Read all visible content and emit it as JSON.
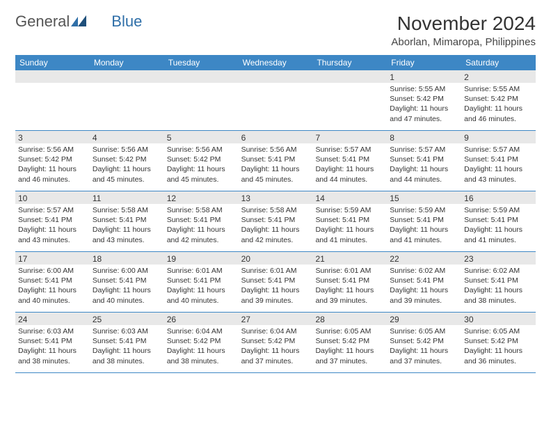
{
  "logo": {
    "text_a": "General",
    "text_b": "Blue"
  },
  "title": "November 2024",
  "location": "Aborlan, Mimaropa, Philippines",
  "colors": {
    "header_bg": "#3d87c5",
    "header_fg": "#ffffff",
    "daynum_bg": "#e8e8e8",
    "week_border": "#3d87c5",
    "text": "#333333",
    "logo_gray": "#555555",
    "logo_blue": "#2f6fa8",
    "page_bg": "#ffffff"
  },
  "typography": {
    "title_fontsize": 28,
    "location_fontsize": 15,
    "dow_fontsize": 12,
    "daynum_fontsize": 12,
    "body_fontsize": 10.5
  },
  "days_of_week": [
    "Sunday",
    "Monday",
    "Tuesday",
    "Wednesday",
    "Thursday",
    "Friday",
    "Saturday"
  ],
  "weeks": [
    [
      null,
      null,
      null,
      null,
      null,
      {
        "n": "1",
        "sunrise": "5:55 AM",
        "sunset": "5:42 PM",
        "daylight": "11 hours and 47 minutes."
      },
      {
        "n": "2",
        "sunrise": "5:55 AM",
        "sunset": "5:42 PM",
        "daylight": "11 hours and 46 minutes."
      }
    ],
    [
      {
        "n": "3",
        "sunrise": "5:56 AM",
        "sunset": "5:42 PM",
        "daylight": "11 hours and 46 minutes."
      },
      {
        "n": "4",
        "sunrise": "5:56 AM",
        "sunset": "5:42 PM",
        "daylight": "11 hours and 45 minutes."
      },
      {
        "n": "5",
        "sunrise": "5:56 AM",
        "sunset": "5:42 PM",
        "daylight": "11 hours and 45 minutes."
      },
      {
        "n": "6",
        "sunrise": "5:56 AM",
        "sunset": "5:41 PM",
        "daylight": "11 hours and 45 minutes."
      },
      {
        "n": "7",
        "sunrise": "5:57 AM",
        "sunset": "5:41 PM",
        "daylight": "11 hours and 44 minutes."
      },
      {
        "n": "8",
        "sunrise": "5:57 AM",
        "sunset": "5:41 PM",
        "daylight": "11 hours and 44 minutes."
      },
      {
        "n": "9",
        "sunrise": "5:57 AM",
        "sunset": "5:41 PM",
        "daylight": "11 hours and 43 minutes."
      }
    ],
    [
      {
        "n": "10",
        "sunrise": "5:57 AM",
        "sunset": "5:41 PM",
        "daylight": "11 hours and 43 minutes."
      },
      {
        "n": "11",
        "sunrise": "5:58 AM",
        "sunset": "5:41 PM",
        "daylight": "11 hours and 43 minutes."
      },
      {
        "n": "12",
        "sunrise": "5:58 AM",
        "sunset": "5:41 PM",
        "daylight": "11 hours and 42 minutes."
      },
      {
        "n": "13",
        "sunrise": "5:58 AM",
        "sunset": "5:41 PM",
        "daylight": "11 hours and 42 minutes."
      },
      {
        "n": "14",
        "sunrise": "5:59 AM",
        "sunset": "5:41 PM",
        "daylight": "11 hours and 41 minutes."
      },
      {
        "n": "15",
        "sunrise": "5:59 AM",
        "sunset": "5:41 PM",
        "daylight": "11 hours and 41 minutes."
      },
      {
        "n": "16",
        "sunrise": "5:59 AM",
        "sunset": "5:41 PM",
        "daylight": "11 hours and 41 minutes."
      }
    ],
    [
      {
        "n": "17",
        "sunrise": "6:00 AM",
        "sunset": "5:41 PM",
        "daylight": "11 hours and 40 minutes."
      },
      {
        "n": "18",
        "sunrise": "6:00 AM",
        "sunset": "5:41 PM",
        "daylight": "11 hours and 40 minutes."
      },
      {
        "n": "19",
        "sunrise": "6:01 AM",
        "sunset": "5:41 PM",
        "daylight": "11 hours and 40 minutes."
      },
      {
        "n": "20",
        "sunrise": "6:01 AM",
        "sunset": "5:41 PM",
        "daylight": "11 hours and 39 minutes."
      },
      {
        "n": "21",
        "sunrise": "6:01 AM",
        "sunset": "5:41 PM",
        "daylight": "11 hours and 39 minutes."
      },
      {
        "n": "22",
        "sunrise": "6:02 AM",
        "sunset": "5:41 PM",
        "daylight": "11 hours and 39 minutes."
      },
      {
        "n": "23",
        "sunrise": "6:02 AM",
        "sunset": "5:41 PM",
        "daylight": "11 hours and 38 minutes."
      }
    ],
    [
      {
        "n": "24",
        "sunrise": "6:03 AM",
        "sunset": "5:41 PM",
        "daylight": "11 hours and 38 minutes."
      },
      {
        "n": "25",
        "sunrise": "6:03 AM",
        "sunset": "5:41 PM",
        "daylight": "11 hours and 38 minutes."
      },
      {
        "n": "26",
        "sunrise": "6:04 AM",
        "sunset": "5:42 PM",
        "daylight": "11 hours and 38 minutes."
      },
      {
        "n": "27",
        "sunrise": "6:04 AM",
        "sunset": "5:42 PM",
        "daylight": "11 hours and 37 minutes."
      },
      {
        "n": "28",
        "sunrise": "6:05 AM",
        "sunset": "5:42 PM",
        "daylight": "11 hours and 37 minutes."
      },
      {
        "n": "29",
        "sunrise": "6:05 AM",
        "sunset": "5:42 PM",
        "daylight": "11 hours and 37 minutes."
      },
      {
        "n": "30",
        "sunrise": "6:05 AM",
        "sunset": "5:42 PM",
        "daylight": "11 hours and 36 minutes."
      }
    ]
  ],
  "labels": {
    "sunrise": "Sunrise:",
    "sunset": "Sunset:",
    "daylight": "Daylight:"
  }
}
